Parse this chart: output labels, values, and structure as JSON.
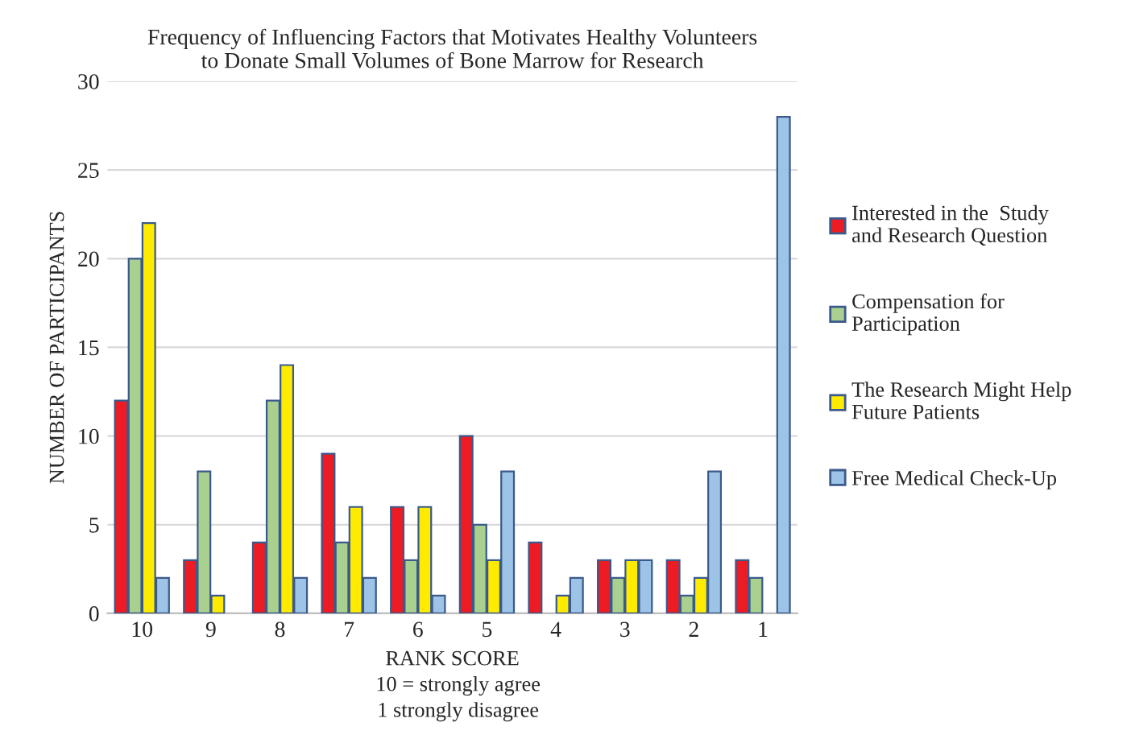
{
  "chart_data": {
    "type": "bar",
    "title": "Frequency of Influencing Factors that Motivates Healthy Volunteers\nto Donate Small Volumes of Bone Marrow for Research",
    "xlabel": "RANK SCORE",
    "ylabel": "NUMBER OF PARTICIPANTS",
    "categories": [
      "10",
      "9",
      "8",
      "7",
      "6",
      "5",
      "4",
      "3",
      "2",
      "1"
    ],
    "series": [
      {
        "name": "Interested in the  Study and Research Question",
        "color": "#ed1c24",
        "values": [
          12,
          3,
          4,
          9,
          6,
          10,
          4,
          3,
          3,
          3
        ]
      },
      {
        "name": "Compensation for Participation",
        "color": "#a9d08e",
        "values": [
          20,
          8,
          12,
          4,
          3,
          5,
          null,
          2,
          1,
          2
        ]
      },
      {
        "name": "The Research Might Help Future Patients",
        "color": "#ffeb00",
        "values": [
          22,
          1,
          14,
          6,
          6,
          3,
          1,
          3,
          2,
          null
        ]
      },
      {
        "name": "Free Medical Check-Up",
        "color": "#9dc3e6",
        "values": [
          2,
          null,
          2,
          2,
          1,
          8,
          2,
          3,
          8,
          28
        ]
      }
    ],
    "ylim": [
      0,
      30
    ],
    "yticks": [
      0,
      5,
      10,
      15,
      20,
      25,
      30
    ],
    "grid": "y",
    "legend": "right",
    "annotations": [
      "10 = strongly agree",
      "1 strongly disagree"
    ]
  }
}
